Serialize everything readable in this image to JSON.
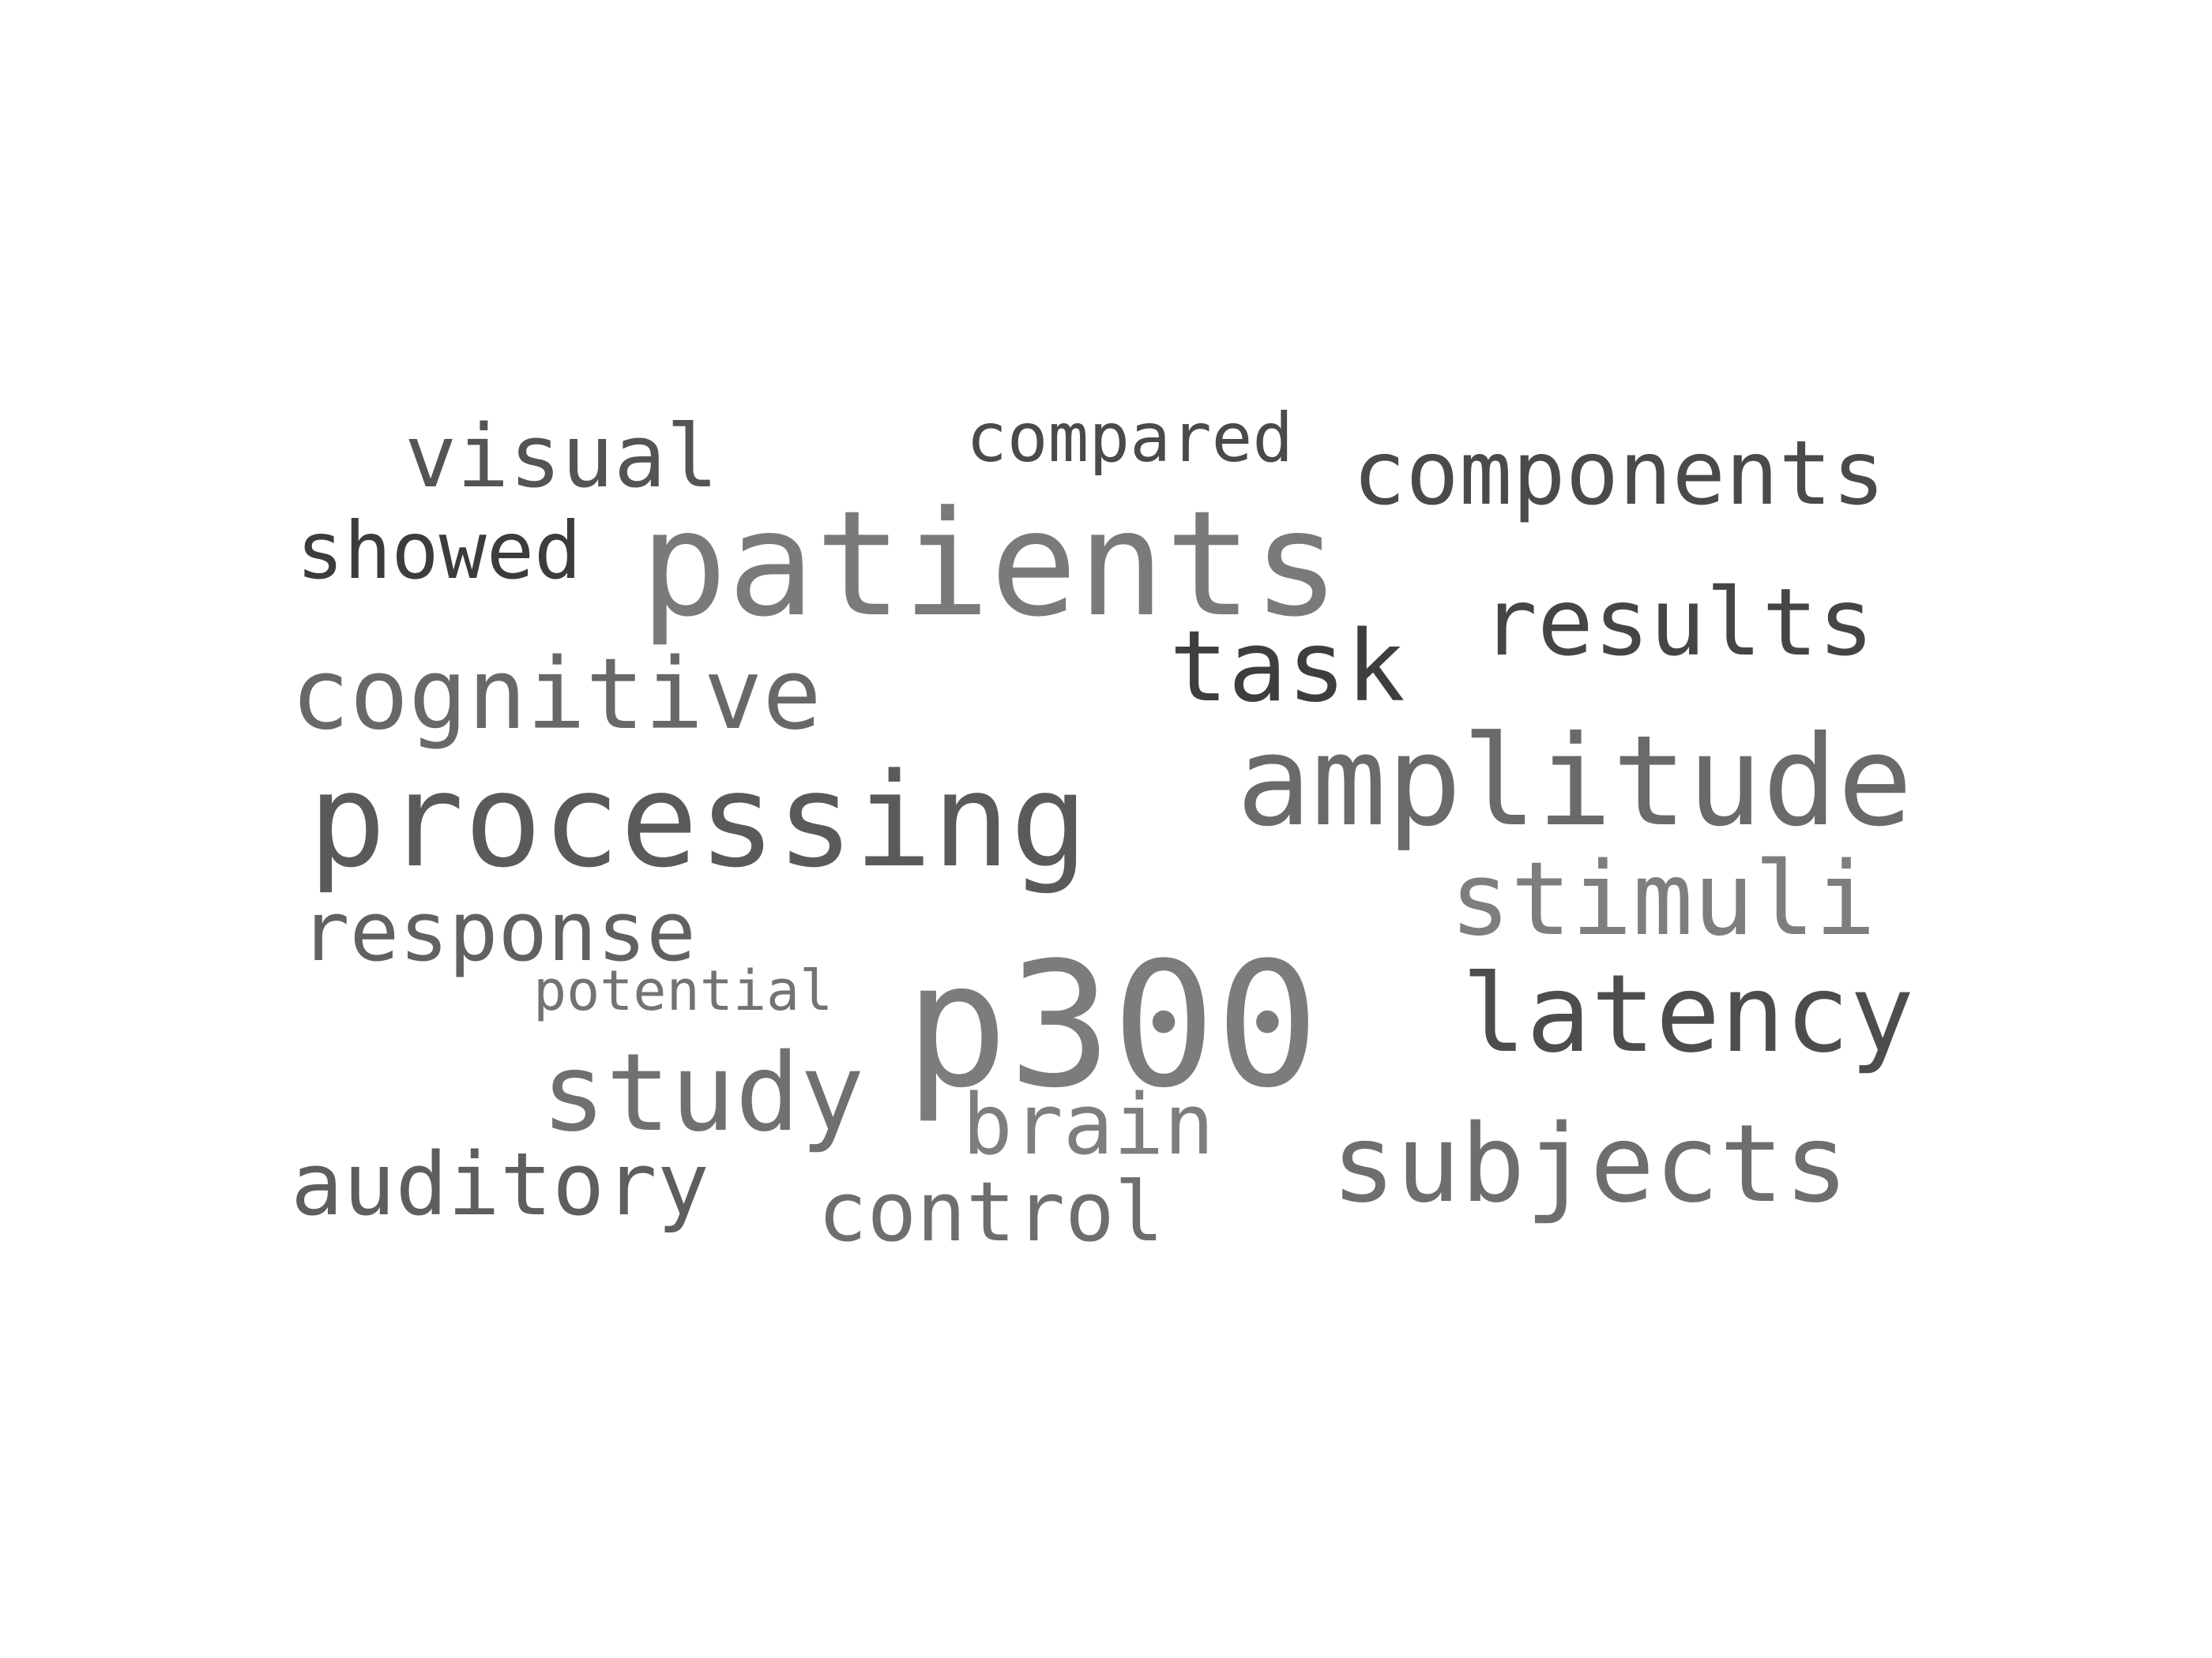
{
  "words": {
    "patients": {
      "text": "patients",
      "color": "#7a7a7a"
    },
    "p300": {
      "text": "p300",
      "color": "#7c7c7c"
    },
    "processing": {
      "text": "processing",
      "color": "#5a5a5a"
    },
    "amplitude": {
      "text": "amplitude",
      "color": "#6a6a6a"
    },
    "latency": {
      "text": "latency",
      "color": "#4d4d4d"
    },
    "subjects": {
      "text": "subjects",
      "color": "#6e6e6e"
    },
    "study": {
      "text": "study",
      "color": "#707070"
    },
    "stimuli": {
      "text": "stimuli",
      "color": "#7e7e7e"
    },
    "cognitive": {
      "text": "cognitive",
      "color": "#686868"
    },
    "task": {
      "text": "task",
      "color": "#3e3e3e"
    },
    "results": {
      "text": "results",
      "color": "#454545"
    },
    "components": {
      "text": "components",
      "color": "#4a4a4a"
    },
    "auditory": {
      "text": "auditory",
      "color": "#5e5e5e"
    },
    "visual": {
      "text": "visual",
      "color": "#545454"
    },
    "brain": {
      "text": "brain",
      "color": "#7e7e7e"
    },
    "control": {
      "text": "control",
      "color": "#6e6e6e"
    },
    "response": {
      "text": "response",
      "color": "#616161"
    },
    "showed": {
      "text": "showed",
      "color": "#3c3c3c"
    },
    "compared": {
      "text": "compared",
      "color": "#4a4a4a"
    },
    "potential": {
      "text": "potential",
      "color": "#737373"
    }
  }
}
